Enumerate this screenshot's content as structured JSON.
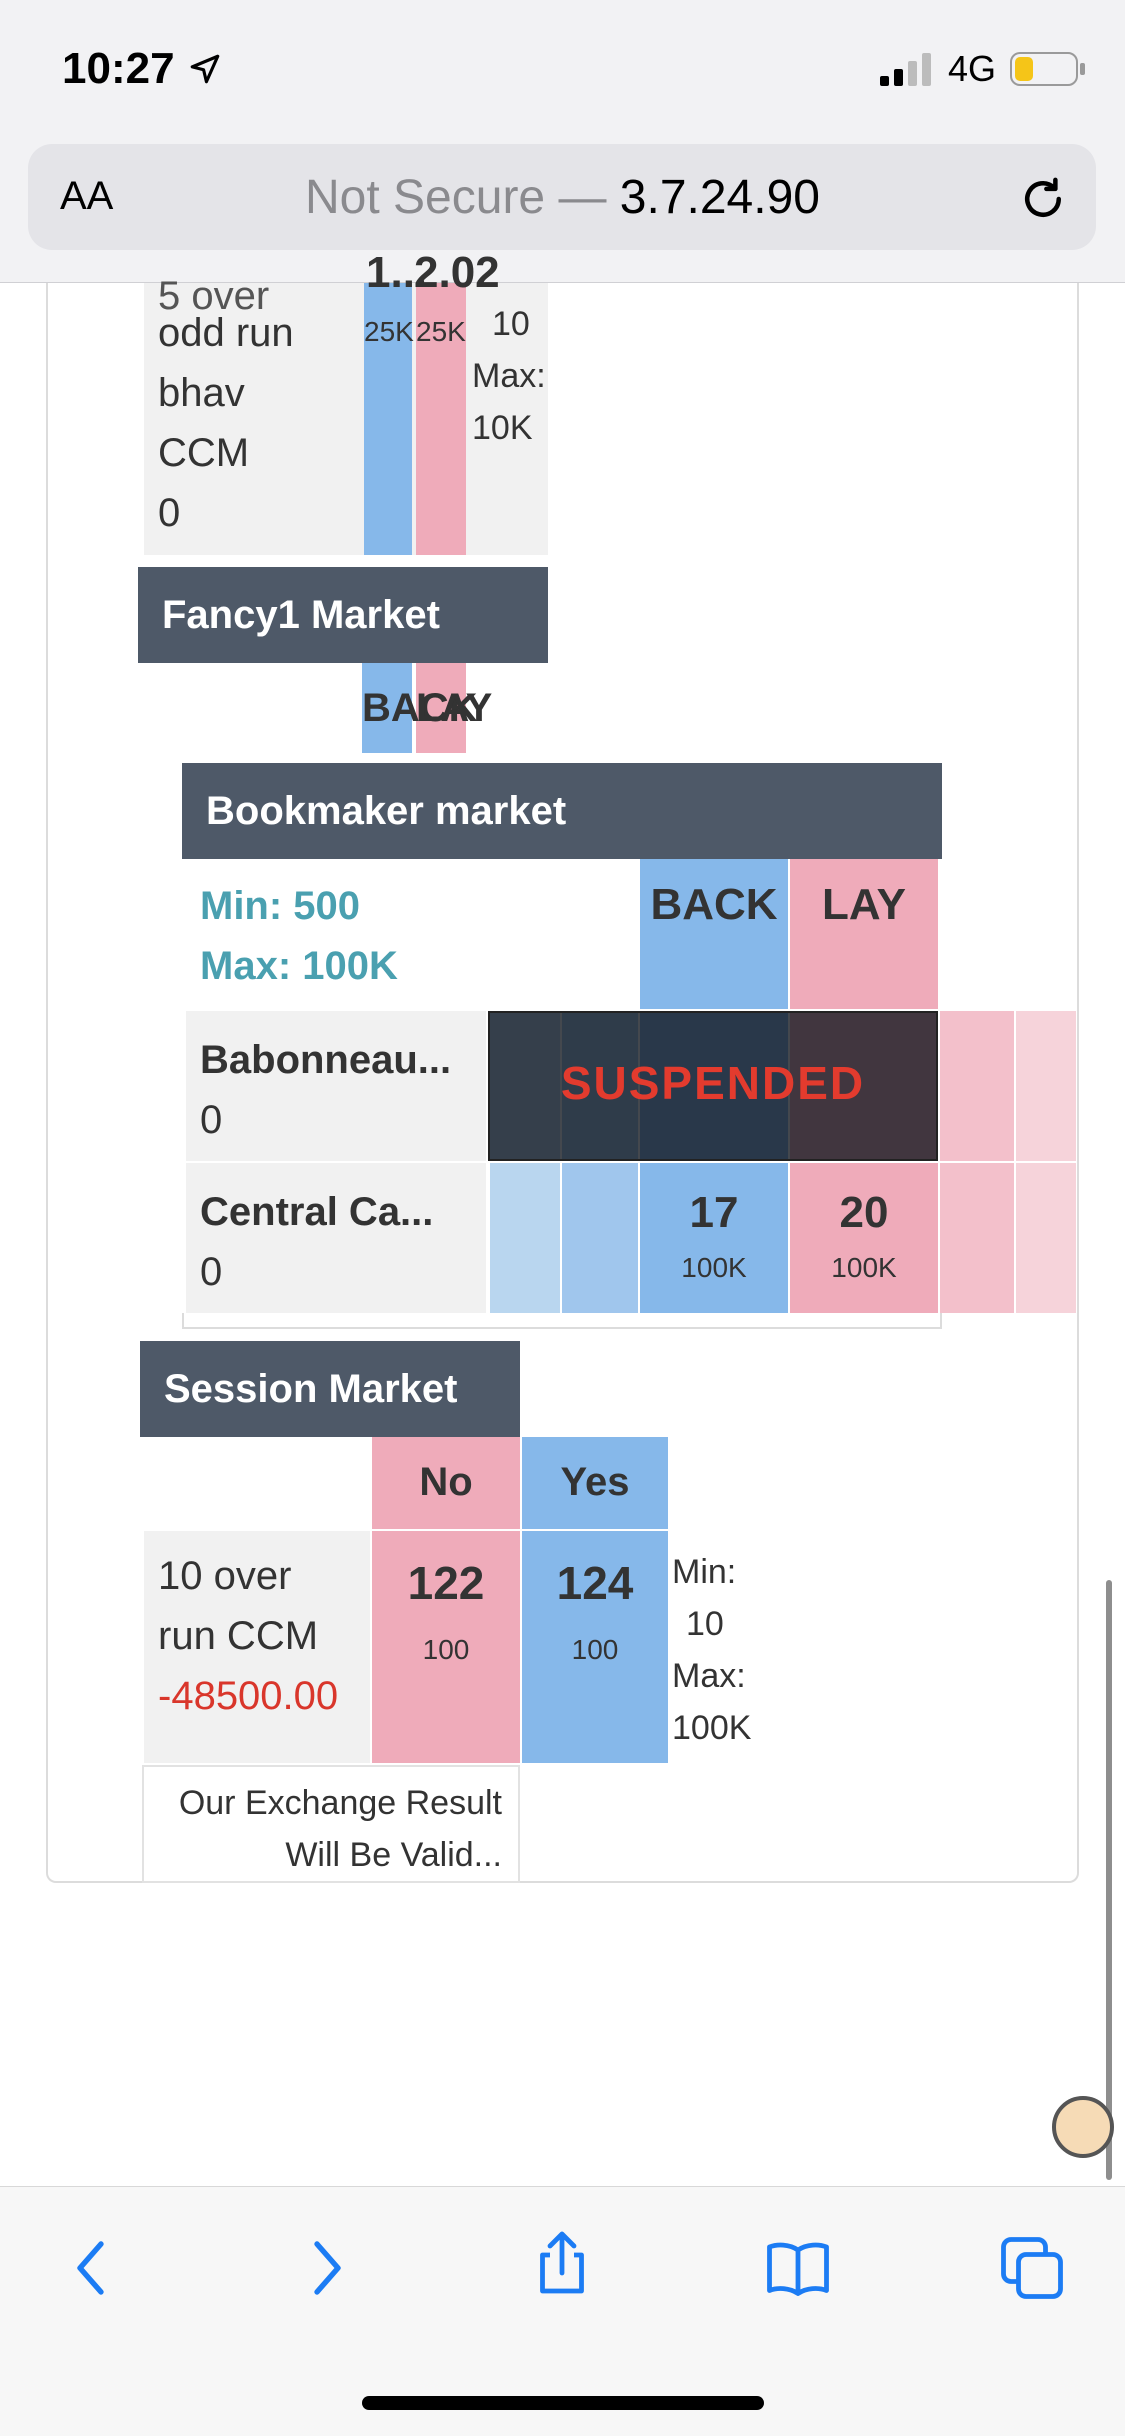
{
  "status_bar": {
    "time": "10:27",
    "network": "4G"
  },
  "address_bar": {
    "aa": "AA",
    "url_prefix": "Not Secure — ",
    "url_host": "3.7.24.90"
  },
  "odd_run_market": {
    "name_lines": [
      "odd run",
      "bhav",
      "CCM",
      "0"
    ],
    "cut_top": "5 over",
    "back_size": "25K",
    "lay_size": "25K",
    "back_odds_partial": "1...",
    "lay_odds_partial": "2.02",
    "min_value": "10",
    "max_label": "Max:",
    "max_value": "10K"
  },
  "fancy1": {
    "title": "Fancy1 Market",
    "back_label": "BACK",
    "lay_label": "LAY"
  },
  "bookmaker": {
    "title": "Bookmaker market",
    "min": "Min: 500",
    "max": "Max: 100K",
    "back_label": "BACK",
    "lay_label": "LAY",
    "rows": [
      {
        "team": "Babonneau...",
        "value": "0",
        "status": "SUSPENDED"
      },
      {
        "team": "Central Ca...",
        "value": "0",
        "back": "17",
        "back_size": "100K",
        "lay": "20",
        "lay_size": "100K"
      }
    ]
  },
  "session": {
    "title": "Session Market",
    "no_label": "No",
    "yes_label": "Yes",
    "row": {
      "name_line1": "10 over",
      "name_line2": "run CCM",
      "pl": "-48500.00",
      "no_odds": "122",
      "no_size": "100",
      "yes_odds": "124",
      "yes_size": "100",
      "min_label": "Min:",
      "min_value": "10",
      "max_label": "Max:",
      "max_value": "100K"
    },
    "footer_line1": "Our Exchange Result",
    "footer_line2": "Will Be Valid..."
  },
  "colors": {
    "back": "#86b8ea",
    "lay": "#efabba",
    "header": "#4e5968",
    "min_max": "#4aa0b0",
    "loss": "#d9362b",
    "suspended": "#e33b2e"
  },
  "icons": [
    "location-arrow-icon",
    "signal-icon",
    "battery-icon",
    "reload-icon",
    "back-icon",
    "forward-icon",
    "share-icon",
    "bookmarks-icon",
    "tabs-icon"
  ]
}
